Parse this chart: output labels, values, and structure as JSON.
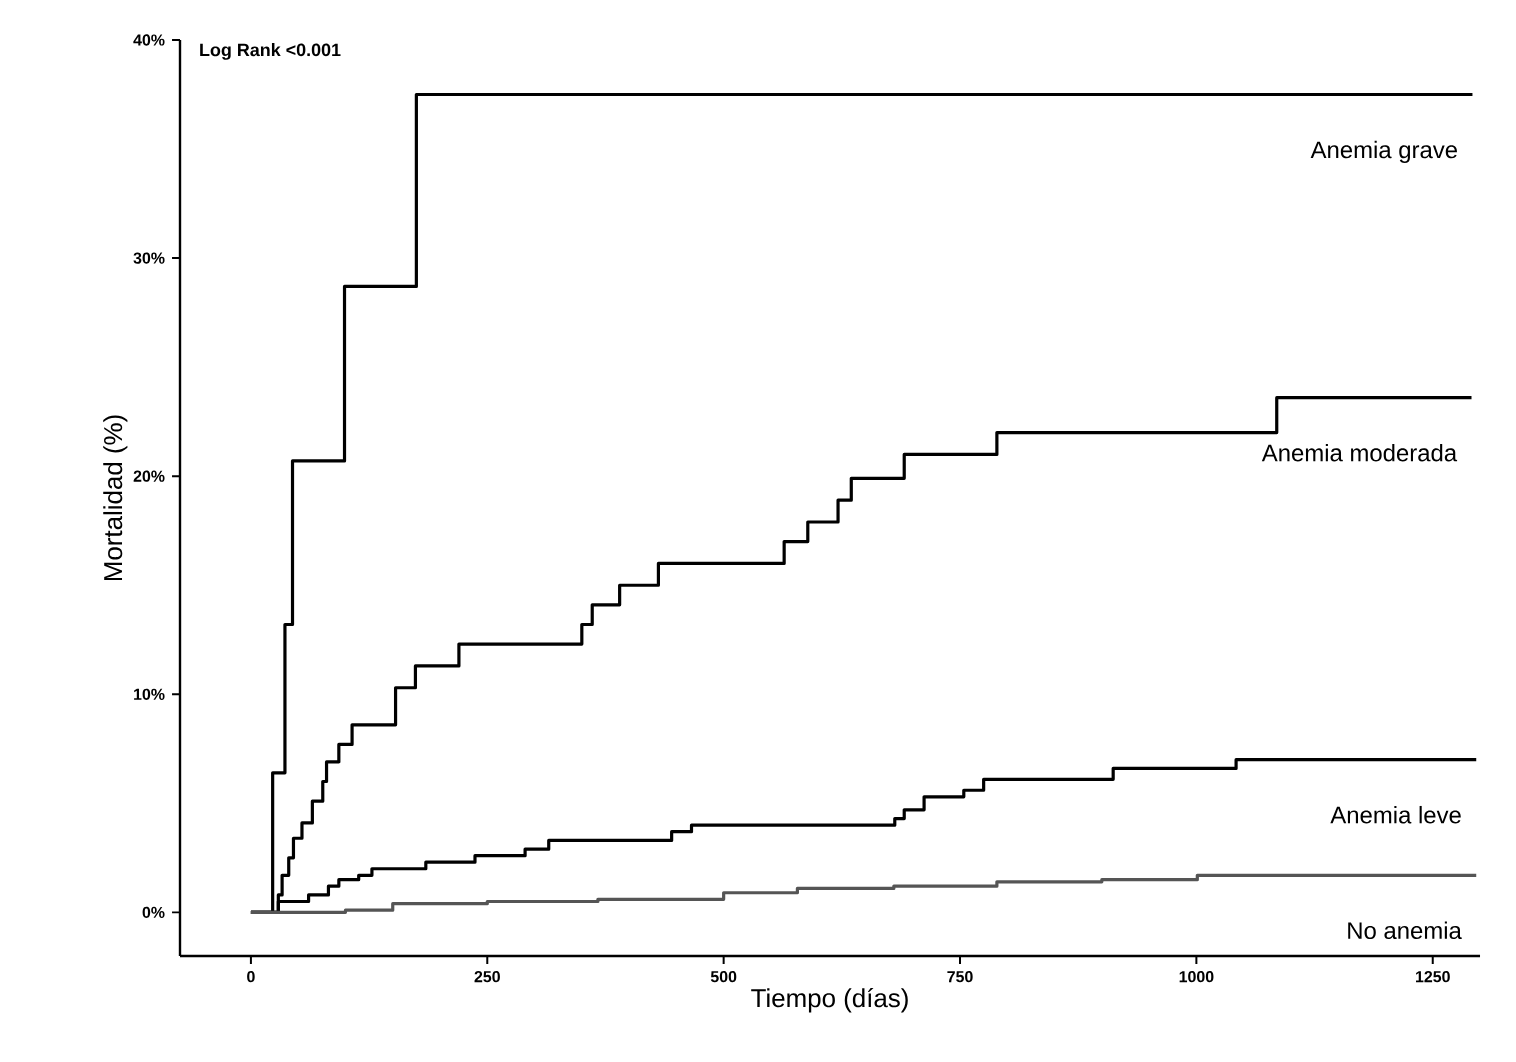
{
  "chart_data": {
    "type": "step",
    "xlabel": "Tiempo (días)",
    "ylabel": "Mortalidad (%)",
    "annotations": [
      "Log Rank <0.001"
    ],
    "legend": false,
    "xlim": [
      -75,
      1300
    ],
    "ylim": [
      -2,
      40
    ],
    "xticks": [
      0,
      250,
      500,
      750,
      1000,
      1250
    ],
    "yticks": [
      {
        "value": 0,
        "label": "0%"
      },
      {
        "value": 10,
        "label": "10%"
      },
      {
        "value": 20,
        "label": "20%"
      },
      {
        "value": 30,
        "label": "30%"
      },
      {
        "value": 40,
        "label": "40%"
      }
    ],
    "series": [
      {
        "name": "Anemia grave",
        "color": "#000000",
        "x": [
          0,
          23,
          36,
          44,
          99,
          175,
          1292
        ],
        "values": [
          0,
          6.4,
          13.2,
          20.7,
          28.7,
          37.5,
          37.5
        ]
      },
      {
        "name": "Anemia moderada",
        "color": "#000000",
        "x": [
          0,
          29,
          33,
          40,
          45,
          54,
          65,
          76,
          80,
          93,
          107,
          153,
          174,
          220,
          350,
          361,
          390,
          431,
          564,
          589,
          621,
          635,
          691,
          789,
          1085,
          1291
        ],
        "values": [
          0,
          0.8,
          1.7,
          2.5,
          3.4,
          4.1,
          5.1,
          6.0,
          6.9,
          7.7,
          8.6,
          10.3,
          11.3,
          12.3,
          13.2,
          14.1,
          15.0,
          16.0,
          17.0,
          17.9,
          18.9,
          19.9,
          21.0,
          22.0,
          23.6,
          23.6
        ]
      },
      {
        "name": "Anemia leve",
        "color": "#000000",
        "x": [
          0,
          29,
          61,
          82,
          93,
          114,
          128,
          185,
          237,
          290,
          315,
          445,
          466,
          681,
          691,
          712,
          754,
          775,
          912,
          1042,
          1296
        ],
        "values": [
          0,
          0.5,
          0.8,
          1.2,
          1.5,
          1.7,
          2.0,
          2.3,
          2.6,
          2.9,
          3.3,
          3.7,
          4.0,
          4.3,
          4.7,
          5.3,
          5.6,
          6.1,
          6.6,
          7.0,
          7.0
        ]
      },
      {
        "name": "No anemia",
        "color": "#555555",
        "x": [
          0,
          25,
          100,
          150,
          250,
          367,
          500,
          578,
          680,
          789,
          900,
          1001,
          1296
        ],
        "values": [
          0,
          0,
          0.1,
          0.4,
          0.5,
          0.6,
          0.9,
          1.1,
          1.2,
          1.4,
          1.5,
          1.7,
          1.7
        ]
      }
    ]
  }
}
